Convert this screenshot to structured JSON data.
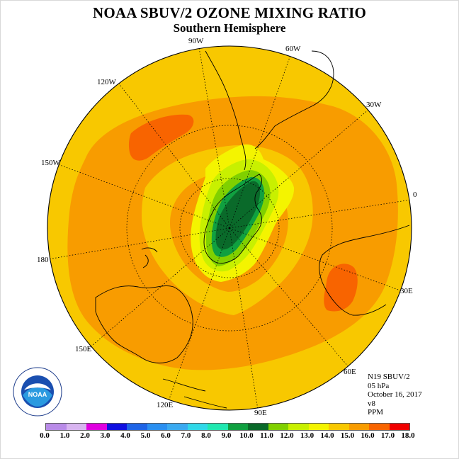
{
  "title": "NOAA SBUV/2 OZONE MIXING RATIO",
  "subtitle": "Southern Hemisphere",
  "longitude_labels": {
    "w90": "90W",
    "w60": "60W",
    "w30": "30W",
    "e0": "0",
    "e30": "30E",
    "e60": "60E",
    "e90": "90E",
    "e120": "120E",
    "e150": "150E",
    "d180": "180",
    "w150": "150W",
    "w120": "120W"
  },
  "info": {
    "instrument": "N19 SBUV/2",
    "level": "05 hPa",
    "date": "October 16, 2017",
    "version": "v8",
    "units": "PPM"
  },
  "colorbar": {
    "ticks": [
      "0.0",
      "1.0",
      "2.0",
      "3.0",
      "4.0",
      "5.0",
      "6.0",
      "7.0",
      "8.0",
      "9.0",
      "10.0",
      "11.0",
      "12.0",
      "13.0",
      "14.0",
      "15.0",
      "16.0",
      "17.0",
      "18.0"
    ],
    "colors": [
      "#b98be8",
      "#d8b4f0",
      "#e000e0",
      "#1010e0",
      "#1e64e6",
      "#2a8ff0",
      "#3aaaf0",
      "#30d8e8",
      "#20e8b0",
      "#10a040",
      "#0a6a2a",
      "#80d000",
      "#c8f000",
      "#f4f400",
      "#f8c800",
      "#f89c00",
      "#f86400",
      "#f00000",
      "#8a5030"
    ]
  },
  "logo_text": "NOAA",
  "map_colors": {
    "ocean_bg": "#f89c00",
    "outer_ring": "#f8c800",
    "yellow": "#f4f400",
    "light_green": "#c8f000",
    "green": "#80d000",
    "mid_green": "#10a040",
    "dark_green": "#0a6a2a",
    "red_orange": "#f86400"
  }
}
